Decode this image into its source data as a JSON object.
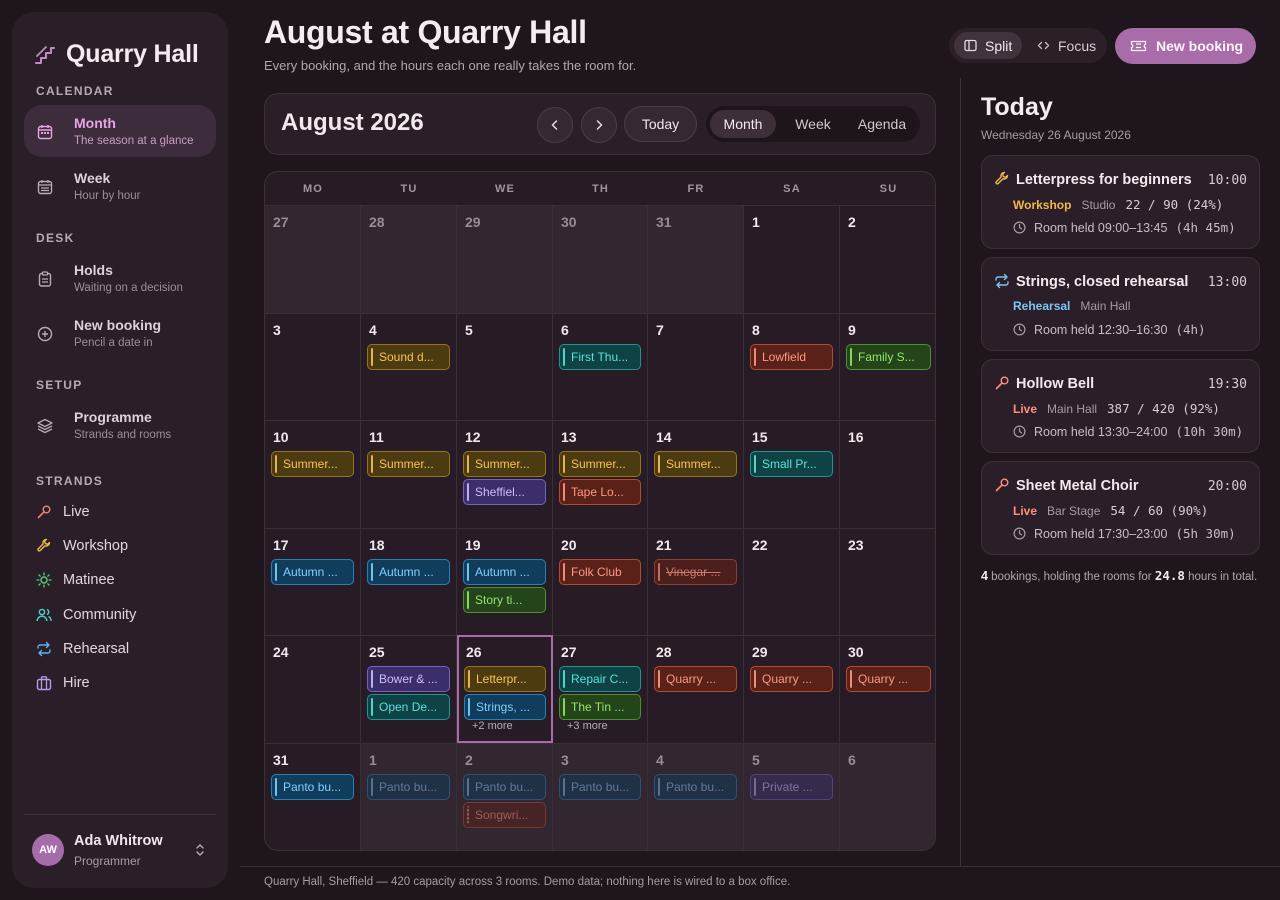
{
  "app": {
    "name": "Quarry Hall",
    "logo_icon": "stairs-icon"
  },
  "sidebar": {
    "sections": {
      "calendar": "CALENDAR",
      "desk": "DESK",
      "setup": "SETUP",
      "strands": "STRANDS"
    },
    "nav": {
      "month": {
        "label": "Month",
        "sub": "The season at a glance",
        "icon": "calendar-month-icon",
        "active": true
      },
      "week": {
        "label": "Week",
        "sub": "Hour by hour",
        "icon": "calendar-week-icon"
      },
      "holds": {
        "label": "Holds",
        "sub": "Waiting on a decision",
        "icon": "clipboard-icon"
      },
      "new_booking": {
        "label": "New booking",
        "sub": "Pencil a date in",
        "icon": "plus-circle-icon"
      },
      "programme": {
        "label": "Programme",
        "sub": "Strands and rooms",
        "icon": "layers-icon"
      }
    },
    "strands": [
      {
        "label": "Live",
        "icon": "microphone-icon",
        "color": "#f08070"
      },
      {
        "label": "Workshop",
        "icon": "wrench-icon",
        "color": "#f0b84a"
      },
      {
        "label": "Matinee",
        "icon": "sun-icon",
        "color": "#5ccf7a"
      },
      {
        "label": "Community",
        "icon": "people-icon",
        "color": "#4fd3c7"
      },
      {
        "label": "Rehearsal",
        "icon": "repeat-icon",
        "color": "#5db3ee"
      },
      {
        "label": "Hire",
        "icon": "briefcase-icon",
        "color": "#b49ae8"
      }
    ],
    "user": {
      "initials": "AW",
      "name": "Ada Whitrow",
      "role": "Programmer"
    }
  },
  "header": {
    "title": "August at Quarry Hall",
    "subtitle": "Every booking, and the hours each one really takes the room for.",
    "view_toggle": [
      {
        "label": "Split",
        "active": true
      },
      {
        "label": "Focus",
        "active": false
      }
    ],
    "new_booking": "New booking"
  },
  "calendar": {
    "month_title": "August 2026",
    "today_label": "Today",
    "views": [
      {
        "label": "Month",
        "active": true
      },
      {
        "label": "Week"
      },
      {
        "label": "Agenda"
      }
    ],
    "weekdays": [
      "MO",
      "TU",
      "WE",
      "TH",
      "FR",
      "SA",
      "SU"
    ],
    "weeks": [
      [
        {
          "d": "27",
          "out": true,
          "events": []
        },
        {
          "d": "28",
          "out": true,
          "events": []
        },
        {
          "d": "29",
          "out": true,
          "events": []
        },
        {
          "d": "30",
          "out": true,
          "events": []
        },
        {
          "d": "31",
          "out": true,
          "events": []
        },
        {
          "d": "1",
          "events": []
        },
        {
          "d": "2",
          "events": []
        }
      ],
      [
        {
          "d": "3",
          "events": []
        },
        {
          "d": "4",
          "events": [
            {
              "t": "Sound d...",
              "k": "workshop"
            }
          ]
        },
        {
          "d": "5",
          "events": []
        },
        {
          "d": "6",
          "events": [
            {
              "t": "First Thu...",
              "k": "matinee"
            }
          ]
        },
        {
          "d": "7",
          "events": []
        },
        {
          "d": "8",
          "events": [
            {
              "t": "Lowfield",
              "k": "live"
            }
          ]
        },
        {
          "d": "9",
          "events": [
            {
              "t": "Family S...",
              "k": "community"
            }
          ]
        }
      ],
      [
        {
          "d": "10",
          "events": [
            {
              "t": "Summer...",
              "k": "workshop"
            }
          ]
        },
        {
          "d": "11",
          "events": [
            {
              "t": "Summer...",
              "k": "workshop"
            }
          ]
        },
        {
          "d": "12",
          "events": [
            {
              "t": "Summer...",
              "k": "workshop"
            },
            {
              "t": "Sheffiel...",
              "k": "hire"
            }
          ]
        },
        {
          "d": "13",
          "events": [
            {
              "t": "Summer...",
              "k": "workshop"
            },
            {
              "t": "Tape Lo...",
              "k": "live"
            }
          ]
        },
        {
          "d": "14",
          "events": [
            {
              "t": "Summer...",
              "k": "workshop"
            }
          ]
        },
        {
          "d": "15",
          "events": [
            {
              "t": "Small Pr...",
              "k": "matinee"
            }
          ]
        },
        {
          "d": "16",
          "events": []
        }
      ],
      [
        {
          "d": "17",
          "events": [
            {
              "t": "Autumn ...",
              "k": "rehearsal"
            }
          ]
        },
        {
          "d": "18",
          "events": [
            {
              "t": "Autumn ...",
              "k": "rehearsal"
            }
          ]
        },
        {
          "d": "19",
          "events": [
            {
              "t": "Autumn ...",
              "k": "rehearsal"
            },
            {
              "t": "Story ti...",
              "k": "community"
            }
          ]
        },
        {
          "d": "20",
          "events": [
            {
              "t": "Folk Club",
              "k": "live"
            }
          ]
        },
        {
          "d": "21",
          "events": [
            {
              "t": "Vinegar ...",
              "k": "live",
              "cancel": true
            }
          ]
        },
        {
          "d": "22",
          "events": []
        },
        {
          "d": "23",
          "events": []
        }
      ],
      [
        {
          "d": "24",
          "events": []
        },
        {
          "d": "25",
          "events": [
            {
              "t": "Bower & ...",
              "k": "hire"
            },
            {
              "t": "Open De...",
              "k": "matinee"
            }
          ]
        },
        {
          "d": "26",
          "today": true,
          "events": [
            {
              "t": "Letterpr...",
              "k": "workshop"
            },
            {
              "t": "Strings, ...",
              "k": "rehearsal"
            }
          ],
          "more": "+2 more"
        },
        {
          "d": "27",
          "events": [
            {
              "t": "Repair C...",
              "k": "matinee"
            },
            {
              "t": "The Tin ...",
              "k": "community"
            }
          ],
          "more": "+3 more"
        },
        {
          "d": "28",
          "events": [
            {
              "t": "Quarry ...",
              "k": "live"
            }
          ]
        },
        {
          "d": "29",
          "events": [
            {
              "t": "Quarry ...",
              "k": "live"
            }
          ]
        },
        {
          "d": "30",
          "events": [
            {
              "t": "Quarry ...",
              "k": "live"
            }
          ]
        }
      ],
      [
        {
          "d": "31",
          "events": [
            {
              "t": "Panto bu...",
              "k": "rehearsal"
            }
          ]
        },
        {
          "d": "1",
          "out": true,
          "events": [
            {
              "t": "Panto bu...",
              "k": "rehearsal",
              "dim": true
            }
          ]
        },
        {
          "d": "2",
          "out": true,
          "events": [
            {
              "t": "Panto bu...",
              "k": "rehearsal",
              "dim": true
            },
            {
              "t": "Songwri...",
              "k": "live",
              "dim": true,
              "dotted": true
            }
          ]
        },
        {
          "d": "3",
          "out": true,
          "events": [
            {
              "t": "Panto bu...",
              "k": "rehearsal",
              "dim": true
            }
          ]
        },
        {
          "d": "4",
          "out": true,
          "events": [
            {
              "t": "Panto bu...",
              "k": "rehearsal",
              "dim": true
            }
          ]
        },
        {
          "d": "5",
          "out": true,
          "events": [
            {
              "t": "Private ...",
              "k": "hire",
              "dim": true
            }
          ]
        },
        {
          "d": "6",
          "out": true,
          "events": []
        }
      ]
    ]
  },
  "today_panel": {
    "title": "Today",
    "date": "Wednesday 26 August 2026",
    "items": [
      {
        "title": "Letterpress for beginners",
        "time": "10:00",
        "strand": "Workshop",
        "strand_color": "#f0b84a",
        "icon": "wrench-icon",
        "room": "Studio",
        "capacity": "22 / 90 (24%)",
        "held": "Room held 09:00–13:45",
        "duration": "(4h 45m)"
      },
      {
        "title": "Strings, closed rehearsal",
        "time": "13:00",
        "strand": "Rehearsal",
        "strand_color": "#7fc4f5",
        "icon": "repeat-icon",
        "room": "Main Hall",
        "capacity": "",
        "held": "Room held 12:30–16:30",
        "duration": "(4h)"
      },
      {
        "title": "Hollow Bell",
        "time": "19:30",
        "strand": "Live",
        "strand_color": "#ff8f7a",
        "icon": "microphone-icon",
        "room": "Main Hall",
        "capacity": "387 / 420 (92%)",
        "held": "Room held 13:30–24:00",
        "duration": "(10h 30m)"
      },
      {
        "title": "Sheet Metal Choir",
        "time": "20:00",
        "strand": "Live",
        "strand_color": "#ff8f7a",
        "icon": "microphone-icon",
        "room": "Bar Stage",
        "capacity": "54 / 60 (90%)",
        "held": "Room held 17:30–23:00",
        "duration": "(5h 30m)"
      }
    ],
    "summary": {
      "count": "4",
      "text_a": "bookings, holding the rooms for",
      "hours": "24.8",
      "text_b": "hours in total."
    }
  },
  "footer": "Quarry Hall, Sheffield — 420 capacity across 3 rooms. Demo data; nothing here is wired to a box office."
}
